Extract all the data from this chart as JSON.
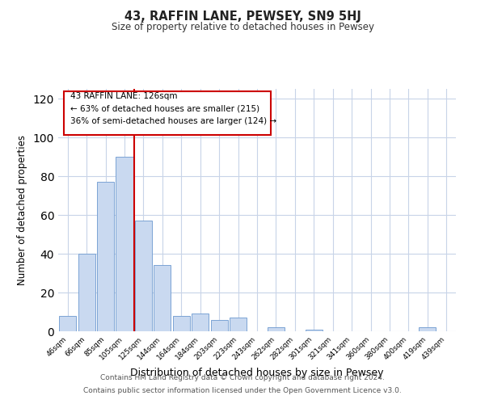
{
  "title": "43, RAFFIN LANE, PEWSEY, SN9 5HJ",
  "subtitle": "Size of property relative to detached houses in Pewsey",
  "xlabel": "Distribution of detached houses by size in Pewsey",
  "ylabel": "Number of detached properties",
  "bar_labels": [
    "46sqm",
    "66sqm",
    "85sqm",
    "105sqm",
    "125sqm",
    "144sqm",
    "164sqm",
    "184sqm",
    "203sqm",
    "223sqm",
    "243sqm",
    "262sqm",
    "282sqm",
    "301sqm",
    "321sqm",
    "341sqm",
    "360sqm",
    "380sqm",
    "400sqm",
    "419sqm",
    "439sqm"
  ],
  "bar_values": [
    8,
    40,
    77,
    90,
    57,
    34,
    8,
    9,
    6,
    7,
    0,
    2,
    0,
    1,
    0,
    0,
    0,
    0,
    0,
    2,
    0
  ],
  "bar_color": "#c9d9f0",
  "bar_edge_color": "#7ba3d4",
  "vline_color": "#cc0000",
  "vline_index": 3,
  "ylim": [
    0,
    125
  ],
  "yticks": [
    0,
    20,
    40,
    60,
    80,
    100,
    120
  ],
  "ann_line1": "43 RAFFIN LANE: 126sqm",
  "ann_line2": "← 63% of detached houses are smaller (215)",
  "ann_line3": "36% of semi-detached houses are larger (124) →",
  "footer_line1": "Contains HM Land Registry data © Crown copyright and database right 2024.",
  "footer_line2": "Contains public sector information licensed under the Open Government Licence v3.0.",
  "background_color": "#ffffff",
  "grid_color": "#c8d4e8"
}
